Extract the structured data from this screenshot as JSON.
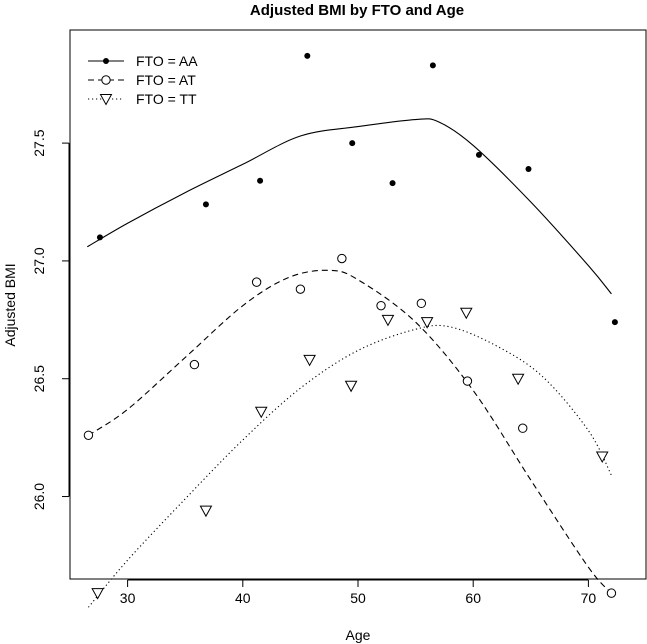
{
  "chart_data": {
    "type": "scatter",
    "title": "Adjusted BMI by FTO and Age",
    "xlabel": "Age",
    "ylabel": "Adjusted BMI",
    "xlim": [
      25,
      75
    ],
    "ylim": [
      25.65,
      27.98
    ],
    "xticks": [
      30,
      40,
      50,
      60,
      70
    ],
    "yticks": [
      26.0,
      26.5,
      27.0,
      27.5
    ],
    "ytick_labels": [
      "26.0",
      "26.5",
      "27.0",
      "27.5"
    ],
    "grid": false,
    "legend": "top-left",
    "series": [
      {
        "name": "FTO = AA",
        "marker": "filled-circle",
        "line": "solid",
        "points": [
          [
            27.6,
            27.1
          ],
          [
            36.8,
            27.24
          ],
          [
            41.5,
            27.34
          ],
          [
            45.6,
            27.87
          ],
          [
            49.5,
            27.5
          ],
          [
            53.0,
            27.33
          ],
          [
            56.5,
            27.83
          ],
          [
            60.5,
            27.45
          ],
          [
            64.8,
            27.39
          ],
          [
            72.3,
            26.74
          ]
        ],
        "curve": [
          [
            26.5,
            27.06
          ],
          [
            30.0,
            27.16
          ],
          [
            35.0,
            27.29
          ],
          [
            40.0,
            27.41
          ],
          [
            45.0,
            27.53
          ],
          [
            50.0,
            27.57
          ],
          [
            55.0,
            27.6
          ],
          [
            57.0,
            27.59
          ],
          [
            60.0,
            27.49
          ],
          [
            65.0,
            27.25
          ],
          [
            70.0,
            26.98
          ],
          [
            72.0,
            26.86
          ]
        ]
      },
      {
        "name": "FTO = AT",
        "marker": "open-circle",
        "line": "dashed",
        "points": [
          [
            26.6,
            26.26
          ],
          [
            35.8,
            26.56
          ],
          [
            41.2,
            26.91
          ],
          [
            45.0,
            26.88
          ],
          [
            48.6,
            27.01
          ],
          [
            52.0,
            26.81
          ],
          [
            55.5,
            26.82
          ],
          [
            59.5,
            26.49
          ],
          [
            64.3,
            26.29
          ],
          [
            72.0,
            25.59
          ]
        ],
        "curve": [
          [
            26.6,
            26.26
          ],
          [
            30.0,
            26.37
          ],
          [
            35.0,
            26.59
          ],
          [
            40.0,
            26.81
          ],
          [
            44.0,
            26.93
          ],
          [
            47.5,
            26.96
          ],
          [
            50.0,
            26.92
          ],
          [
            55.0,
            26.74
          ],
          [
            60.0,
            26.45
          ],
          [
            65.0,
            26.07
          ],
          [
            70.0,
            25.7
          ],
          [
            72.0,
            25.59
          ]
        ]
      },
      {
        "name": "FTO = TT",
        "marker": "open-triangle-down",
        "line": "dotted",
        "points": [
          [
            27.4,
            25.59
          ],
          [
            36.8,
            25.94
          ],
          [
            41.6,
            26.36
          ],
          [
            45.8,
            26.58
          ],
          [
            49.4,
            26.47
          ],
          [
            52.6,
            26.75
          ],
          [
            56.0,
            26.74
          ],
          [
            59.4,
            26.78
          ],
          [
            63.9,
            26.5
          ],
          [
            71.2,
            26.17
          ]
        ],
        "curve": [
          [
            26.6,
            25.53
          ],
          [
            30.0,
            25.73
          ],
          [
            35.0,
            25.99
          ],
          [
            40.0,
            26.24
          ],
          [
            45.0,
            26.46
          ],
          [
            50.0,
            26.62
          ],
          [
            55.0,
            26.71
          ],
          [
            58.0,
            26.72
          ],
          [
            62.0,
            26.64
          ],
          [
            66.0,
            26.51
          ],
          [
            70.0,
            26.28
          ],
          [
            72.0,
            26.09
          ]
        ]
      }
    ]
  }
}
